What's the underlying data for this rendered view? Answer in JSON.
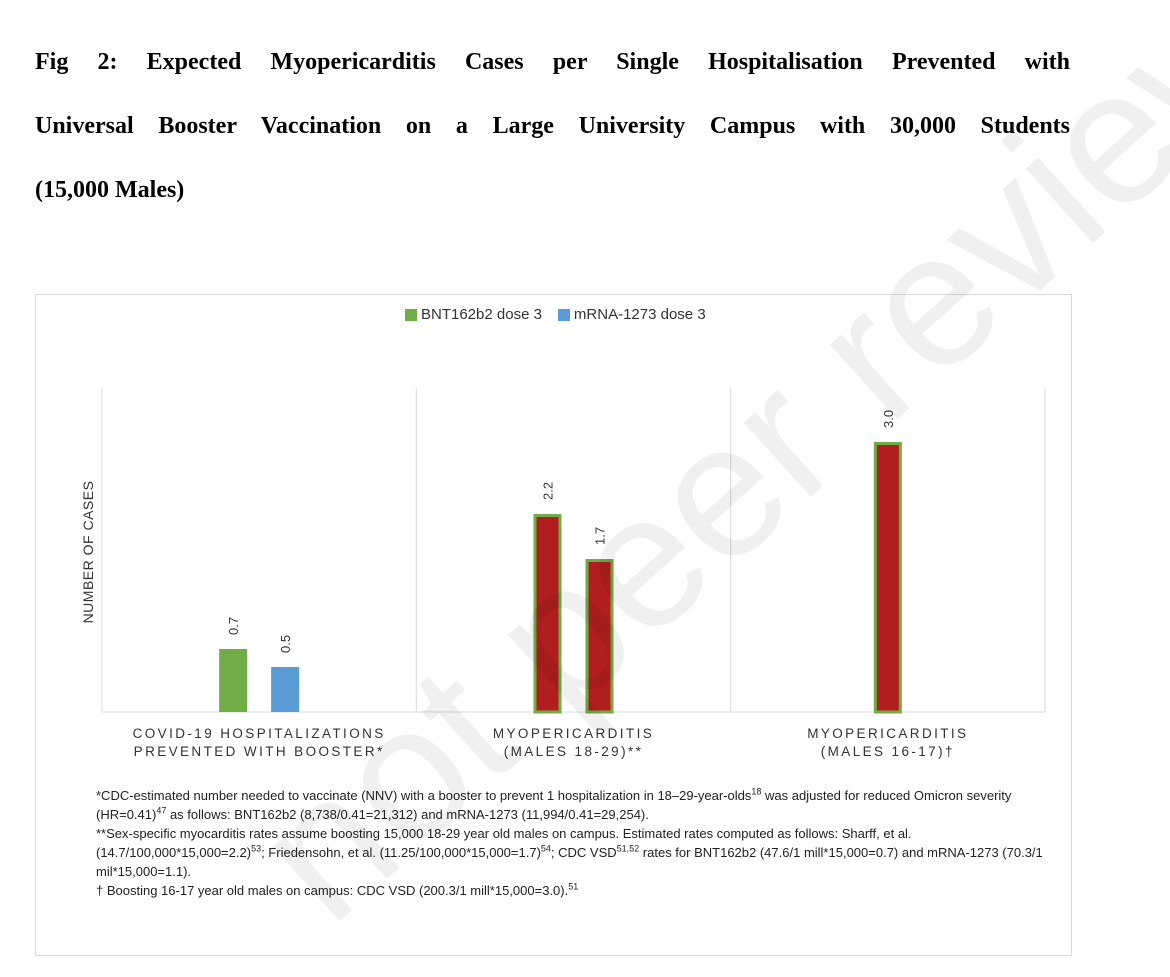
{
  "figure": {
    "title_lines": [
      "Fig 2: Expected Myopericarditis Cases per Single Hospitalisation Prevented with",
      "Universal Booster Vaccination on a Large University Campus with 30,000 Students",
      "(15,000 Males)"
    ],
    "watermark": "not peer reviewed"
  },
  "chart_data": {
    "type": "bar",
    "categories": [
      "COVID-19 HOSPITALIZATIONS\nPREVENTED WITH BOOSTER*",
      "MYOPERICARDITIS\n(MALES 18-29)**",
      "MYOPERICARDITIS\n(MALES 16-17)†"
    ],
    "legend": [
      "BNT162b2 dose 3",
      "mRNA-1273 dose 3"
    ],
    "legend_colors": [
      "#70ad47",
      "#5b9bd5"
    ],
    "ylabel": "NUMBER OF CASES",
    "ylim": [
      0,
      3.6
    ],
    "grid": false,
    "bars": [
      {
        "category": 0,
        "slot": 0,
        "value": 0.7,
        "label": "0.7",
        "fill": "#70ad47",
        "stroke": "none"
      },
      {
        "category": 0,
        "slot": 1,
        "value": 0.5,
        "label": "0.5",
        "fill": "#5b9bd5",
        "stroke": "none"
      },
      {
        "category": 1,
        "slot": 0,
        "value": 2.2,
        "label": "2.2",
        "fill": "#b01e1e",
        "stroke": "#70ad47"
      },
      {
        "category": 1,
        "slot": 1,
        "value": 1.7,
        "label": "1.7",
        "fill": "#b01e1e",
        "stroke": "#70ad47"
      },
      {
        "category": 2,
        "slot": 0,
        "value": 3.0,
        "label": "3.0",
        "fill": "#b01e1e",
        "stroke": "#70ad47"
      }
    ]
  },
  "notes": {
    "n1a": "*CDC-estimated number needed to vaccinate (NNV) with a booster to prevent 1 hospitalization in 18–29-year-olds",
    "n1a_sup": "18",
    "n1b": " was adjusted for reduced Omicron severity (HR=0.41)",
    "n1b_sup": "47",
    "n1c": " as follows: BNT162b2 (8,738/0.41=21,312) and mRNA-1273 (11,994/0.41=29,254).",
    "n2a": "**Sex-specific myocarditis rates assume boosting 15,000 18-29 year old males on campus. Estimated rates computed as follows: Sharff, et al. (14.7/100,000*15,000=2.2)",
    "n2a_sup": "53",
    "n2b": "; Friedensohn, et al. (11.25/100,000*15,000=1.7)",
    "n2b_sup": "54",
    "n2c": "; CDC VSD",
    "n2c_sup": "51,52",
    "n2d": " rates for BNT162b2 (47.6/1 mill*15,000=0.7) and mRNA-1273 (70.3/1 mil*15,000=1.1).",
    "n3": "† Boosting 16-17 year old males on campus: CDC VSD (200.3/1 mill*15,000=3.0).",
    "n3_sup": "51"
  }
}
